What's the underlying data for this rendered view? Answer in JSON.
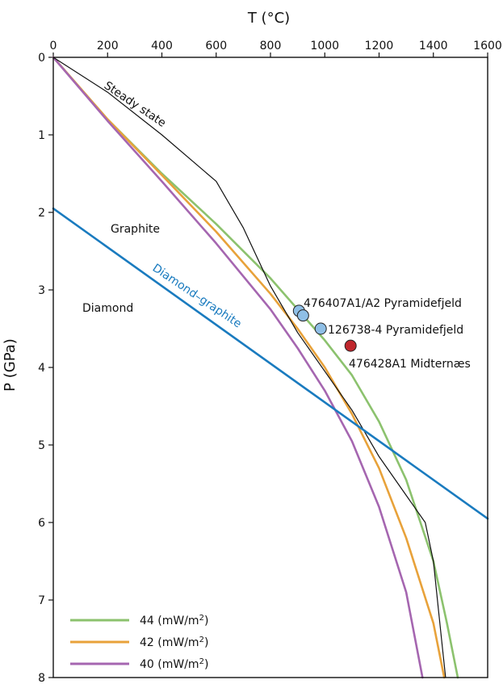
{
  "chart_data": {
    "type": "line",
    "title": "",
    "xlabel": "T (°C)",
    "ylabel": "P (GPa)",
    "xlim": [
      0,
      1600
    ],
    "ylim": [
      0,
      8
    ],
    "x_ticks": [
      0,
      200,
      400,
      600,
      800,
      1000,
      1200,
      1400,
      1600
    ],
    "y_ticks": [
      0,
      1,
      2,
      3,
      4,
      5,
      6,
      7,
      8
    ],
    "x_axis_position": "top",
    "y_axis_inverted": true,
    "grid": false,
    "legend_position": "bottom-left",
    "series": [
      {
        "name": "44 (mW/m2)",
        "legend_text": "44 (mW/m",
        "legend_sup": "2",
        "legend_suffix": ")",
        "color": "#8cc26e",
        "points": [
          [
            0,
            0
          ],
          [
            200,
            0.8
          ],
          [
            400,
            1.5
          ],
          [
            600,
            2.15
          ],
          [
            800,
            2.85
          ],
          [
            1000,
            3.65
          ],
          [
            1100,
            4.1
          ],
          [
            1200,
            4.7
          ],
          [
            1300,
            5.45
          ],
          [
            1400,
            6.5
          ],
          [
            1450,
            7.3
          ],
          [
            1490,
            8.0
          ]
        ]
      },
      {
        "name": "42 (mW/m2)",
        "legend_text": "42 (mW/m",
        "legend_sup": "2",
        "legend_suffix": ")",
        "color": "#e8a23a",
        "points": [
          [
            0,
            0
          ],
          [
            200,
            0.8
          ],
          [
            400,
            1.52
          ],
          [
            600,
            2.25
          ],
          [
            800,
            3.05
          ],
          [
            900,
            3.5
          ],
          [
            1000,
            4.0
          ],
          [
            1100,
            4.6
          ],
          [
            1200,
            5.3
          ],
          [
            1300,
            6.2
          ],
          [
            1400,
            7.3
          ],
          [
            1440,
            8.0
          ]
        ]
      },
      {
        "name": "40 (mW/m2)",
        "legend_text": "40 (mW/m",
        "legend_sup": "2",
        "legend_suffix": ")",
        "color": "#a566b0",
        "points": [
          [
            0,
            0
          ],
          [
            200,
            0.82
          ],
          [
            400,
            1.6
          ],
          [
            600,
            2.4
          ],
          [
            800,
            3.25
          ],
          [
            900,
            3.75
          ],
          [
            1000,
            4.3
          ],
          [
            1100,
            4.95
          ],
          [
            1200,
            5.8
          ],
          [
            1300,
            6.9
          ],
          [
            1360,
            8.0
          ]
        ]
      },
      {
        "name": "Steady state",
        "color": "#111111",
        "points": [
          [
            0,
            0
          ],
          [
            200,
            0.45
          ],
          [
            400,
            1.0
          ],
          [
            600,
            1.6
          ],
          [
            700,
            2.2
          ],
          [
            800,
            2.95
          ],
          [
            900,
            3.55
          ],
          [
            1000,
            4.05
          ],
          [
            1100,
            4.55
          ],
          [
            1200,
            5.15
          ],
          [
            1300,
            5.65
          ],
          [
            1370,
            6.0
          ],
          [
            1400,
            6.5
          ],
          [
            1430,
            7.5
          ],
          [
            1445,
            8.0
          ]
        ]
      },
      {
        "name": "Diamond–graphite",
        "color": "#1a7bbf",
        "points": [
          [
            0,
            1.95
          ],
          [
            1600,
            5.95
          ]
        ]
      }
    ],
    "samples": [
      {
        "name": "476407A1/A2 Pyramidefjeld",
        "color": "#8fbfe6",
        "points": [
          [
            905,
            3.27
          ],
          [
            920,
            3.33
          ]
        ]
      },
      {
        "name": "126738-4 Pyramidefjeld",
        "color": "#8fbfe6",
        "points": [
          [
            985,
            3.5
          ]
        ]
      },
      {
        "name": "476428A1 Midternæs",
        "color": "#c0272d",
        "points": [
          [
            1095,
            3.72
          ]
        ]
      }
    ],
    "annotations": {
      "steady_state_label": "Steady state",
      "diamond_graphite_label": "Diamond–graphite",
      "graphite_region": "Graphite",
      "diamond_region": "Diamond"
    }
  }
}
